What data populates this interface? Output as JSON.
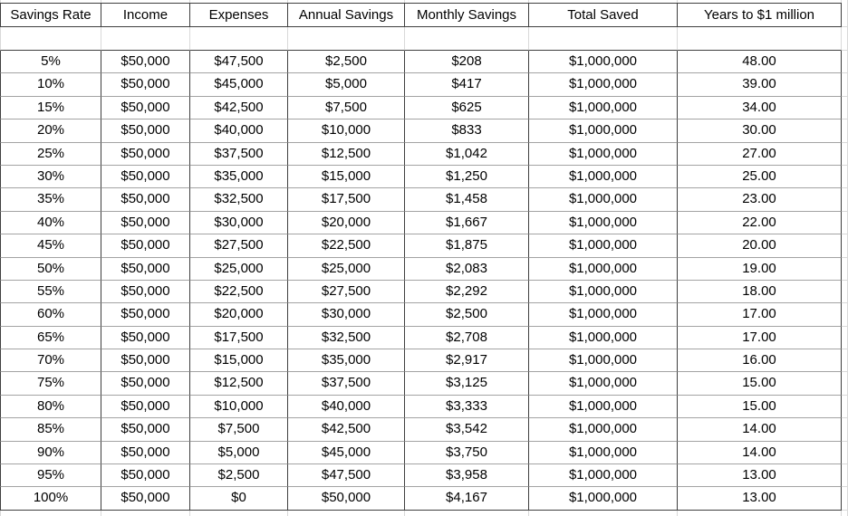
{
  "table": {
    "headers": [
      "Savings Rate",
      "Income",
      "Expenses",
      "Annual Savings",
      "Monthly Savings",
      "Total Saved",
      "Years to $1 million"
    ],
    "rows": [
      [
        "5%",
        "$50,000",
        "$47,500",
        "$2,500",
        "$208",
        "$1,000,000",
        "48.00"
      ],
      [
        "10%",
        "$50,000",
        "$45,000",
        "$5,000",
        "$417",
        "$1,000,000",
        "39.00"
      ],
      [
        "15%",
        "$50,000",
        "$42,500",
        "$7,500",
        "$625",
        "$1,000,000",
        "34.00"
      ],
      [
        "20%",
        "$50,000",
        "$40,000",
        "$10,000",
        "$833",
        "$1,000,000",
        "30.00"
      ],
      [
        "25%",
        "$50,000",
        "$37,500",
        "$12,500",
        "$1,042",
        "$1,000,000",
        "27.00"
      ],
      [
        "30%",
        "$50,000",
        "$35,000",
        "$15,000",
        "$1,250",
        "$1,000,000",
        "25.00"
      ],
      [
        "35%",
        "$50,000",
        "$32,500",
        "$17,500",
        "$1,458",
        "$1,000,000",
        "23.00"
      ],
      [
        "40%",
        "$50,000",
        "$30,000",
        "$20,000",
        "$1,667",
        "$1,000,000",
        "22.00"
      ],
      [
        "45%",
        "$50,000",
        "$27,500",
        "$22,500",
        "$1,875",
        "$1,000,000",
        "20.00"
      ],
      [
        "50%",
        "$50,000",
        "$25,000",
        "$25,000",
        "$2,083",
        "$1,000,000",
        "19.00"
      ],
      [
        "55%",
        "$50,000",
        "$22,500",
        "$27,500",
        "$2,292",
        "$1,000,000",
        "18.00"
      ],
      [
        "60%",
        "$50,000",
        "$20,000",
        "$30,000",
        "$2,500",
        "$1,000,000",
        "17.00"
      ],
      [
        "65%",
        "$50,000",
        "$17,500",
        "$32,500",
        "$2,708",
        "$1,000,000",
        "17.00"
      ],
      [
        "70%",
        "$50,000",
        "$15,000",
        "$35,000",
        "$2,917",
        "$1,000,000",
        "16.00"
      ],
      [
        "75%",
        "$50,000",
        "$12,500",
        "$37,500",
        "$3,125",
        "$1,000,000",
        "15.00"
      ],
      [
        "80%",
        "$50,000",
        "$10,000",
        "$40,000",
        "$3,333",
        "$1,000,000",
        "15.00"
      ],
      [
        "85%",
        "$50,000",
        "$7,500",
        "$42,500",
        "$3,542",
        "$1,000,000",
        "14.00"
      ],
      [
        "90%",
        "$50,000",
        "$5,000",
        "$45,000",
        "$3,750",
        "$1,000,000",
        "14.00"
      ],
      [
        "95%",
        "$50,000",
        "$2,500",
        "$47,500",
        "$3,958",
        "$1,000,000",
        "13.00"
      ],
      [
        "100%",
        "$50,000",
        "$0",
        "$50,000",
        "$4,167",
        "$1,000,000",
        "13.00"
      ]
    ]
  },
  "colors": {
    "bg": "#ffffff",
    "text": "#000000",
    "border_dark": "#3f3f3f",
    "border_mid": "#a3a3a3",
    "border_light": "#d9d9d9"
  }
}
